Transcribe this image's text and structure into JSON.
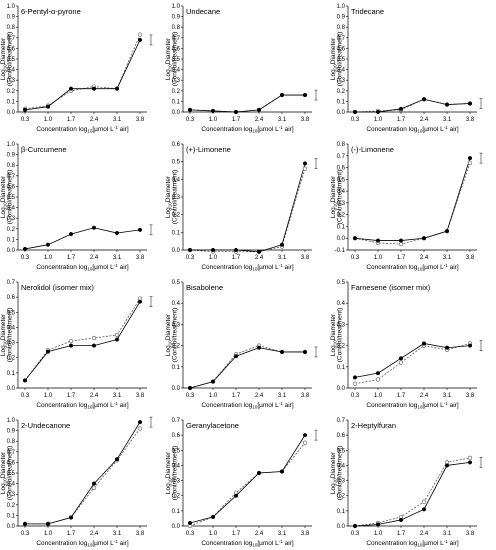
{
  "axes": {
    "ylabel_main": "Log",
    "ylabel_sub": "10",
    "ylabel_rest": "Diameter",
    "ylabel_line2": "(Control/treatment)",
    "xlabel_main": "Concentration log",
    "xlabel_sub": "10",
    "xlabel_rest": "[µmol L",
    "xlabel_sup": "-1",
    "xlabel_end": "air]"
  },
  "chart_data": [
    {
      "type": "line",
      "title": "6-Pentyl-α-pyrone",
      "x": [
        "0.3",
        "1.0",
        "1.7",
        "2.4",
        "3.1",
        "3.8"
      ],
      "xlabel": "Concentration log10[µmol L-1 air]",
      "ylabel": "Log10Diameter (Control/treatment)",
      "ylim": [
        0,
        1
      ],
      "yticks": [
        "0.0",
        "0.1",
        "0.2",
        "0.3",
        "0.4",
        "0.5",
        "0.6",
        "0.7",
        "0.8",
        "0.9",
        "1.0"
      ],
      "series": [
        {
          "marker": "filled",
          "values": [
            0.02,
            0.05,
            0.22,
            0.22,
            0.22,
            0.68
          ]
        },
        {
          "marker": "open",
          "values": [
            0.03,
            0.06,
            0.2,
            0.24,
            0.22,
            0.73
          ]
        }
      ]
    },
    {
      "type": "line",
      "title": "Undecane",
      "x": [
        "0.3",
        "1.0",
        "1.7",
        "2.4",
        "3.1",
        "3.8"
      ],
      "xlabel": "Concentration log10[µmol L-1 air]",
      "ylabel": "Log10Diameter (Control/treatment)",
      "ylim": [
        0,
        1
      ],
      "yticks": [
        "0.0",
        "0.1",
        "0.2",
        "0.3",
        "0.4",
        "0.5",
        "0.6",
        "0.7",
        "0.8",
        "0.9",
        "1.0"
      ],
      "series": [
        {
          "marker": "filled",
          "values": [
            0.02,
            0.01,
            0.0,
            0.02,
            0.16,
            0.16
          ]
        },
        {
          "marker": "open",
          "values": [
            0.02,
            0.01,
            0.0,
            0.02,
            0.16,
            0.16
          ]
        }
      ]
    },
    {
      "type": "line",
      "title": "Tridecane",
      "x": [
        "0.3",
        "1.0",
        "1.7",
        "2.4",
        "3.1",
        "3.8"
      ],
      "xlabel": "Concentration log10[µmol L-1 air]",
      "ylabel": "Log10Diameter (Control/treatment)",
      "ylim": [
        0,
        1
      ],
      "yticks": [
        "0.0",
        "0.1",
        "0.2",
        "0.3",
        "0.4",
        "0.5",
        "0.6",
        "0.7",
        "0.8",
        "0.9",
        "1.0"
      ],
      "series": [
        {
          "marker": "filled",
          "values": [
            0.0,
            0.0,
            0.03,
            0.12,
            0.07,
            0.08
          ]
        },
        {
          "marker": "open",
          "values": [
            0.0,
            0.01,
            0.02,
            0.12,
            0.07,
            0.08
          ]
        }
      ]
    },
    {
      "type": "line",
      "title": "β-Curcumene",
      "x": [
        "0.3",
        "1.0",
        "1.7",
        "2.4",
        "3.1",
        "3.8"
      ],
      "xlabel": "Concentration log10[µmol L-1 air]",
      "ylabel": "Log10Diameter (Control/treatment)",
      "ylim": [
        0,
        1
      ],
      "yticks": [
        "0.0",
        "0.1",
        "0.2",
        "0.3",
        "0.4",
        "0.5",
        "0.6",
        "0.7",
        "0.8",
        "0.9",
        "1.0"
      ],
      "series": [
        {
          "marker": "filled",
          "values": [
            0.01,
            0.05,
            0.15,
            0.21,
            0.16,
            0.19
          ]
        }
      ]
    },
    {
      "type": "line",
      "title": "(+)-Limonene",
      "x": [
        "0.3",
        "1.0",
        "1.7",
        "2.4",
        "3.1",
        "3.8"
      ],
      "xlabel": "Concentration log10[µmol L-1 air]",
      "ylabel": "Log10Diameter (Control/treatment)",
      "ylim": [
        0,
        0.6
      ],
      "yticks": [
        "0.0",
        "0.1",
        "0.2",
        "0.3",
        "0.4",
        "0.5",
        "0.6"
      ],
      "series": [
        {
          "marker": "filled",
          "values": [
            0.0,
            0.0,
            0.0,
            -0.01,
            0.03,
            0.49
          ]
        },
        {
          "marker": "open",
          "values": [
            0.0,
            -0.01,
            -0.01,
            -0.01,
            0.02,
            0.46
          ]
        }
      ]
    },
    {
      "type": "line",
      "title": "(-)-Limonene",
      "x": [
        "0.3",
        "1.0",
        "1.7",
        "2.4",
        "3.1",
        "3.8"
      ],
      "xlabel": "Concentration log10[µmol L-1 air]",
      "ylabel": "Log10Diameter (Control/treatment)",
      "ylim": [
        -0.1,
        0.8
      ],
      "yticks": [
        "-0.1",
        "0.0",
        "0.1",
        "0.2",
        "0.3",
        "0.4",
        "0.5",
        "0.6",
        "0.7",
        "0.8"
      ],
      "series": [
        {
          "marker": "filled",
          "values": [
            0.0,
            -0.02,
            -0.02,
            0.0,
            0.06,
            0.68
          ]
        },
        {
          "marker": "open",
          "values": [
            0.0,
            -0.04,
            -0.05,
            0.0,
            0.06,
            0.64
          ]
        }
      ]
    },
    {
      "type": "line",
      "title": "Nerolidol (isomer mix)",
      "x": [
        "0.3",
        "1.0",
        "1.7",
        "2.4",
        "3.1",
        "3.8"
      ],
      "xlabel": "Concentration log10[µmol L-1 air]",
      "ylabel": "Log10Diameter (Control/treatment)",
      "ylim": [
        0,
        0.7
      ],
      "yticks": [
        "0.0",
        "0.1",
        "0.2",
        "0.3",
        "0.4",
        "0.5",
        "0.6",
        "0.7"
      ],
      "series": [
        {
          "marker": "filled",
          "values": [
            0.05,
            0.24,
            0.28,
            0.28,
            0.32,
            0.57
          ]
        },
        {
          "marker": "open",
          "values": [
            0.05,
            0.25,
            0.31,
            0.33,
            0.35,
            0.59
          ]
        }
      ]
    },
    {
      "type": "line",
      "title": "Bisabolene",
      "x": [
        "0.3",
        "1.0",
        "1.7",
        "2.4",
        "3.1",
        "3.8"
      ],
      "xlabel": "Concentration log10[µmol L-1 air]",
      "ylabel": "Log10Diameter (Control/treatment)",
      "ylim": [
        0,
        0.5
      ],
      "yticks": [
        "0.0",
        "0.1",
        "0.2",
        "0.3",
        "0.4",
        "0.5"
      ],
      "series": [
        {
          "marker": "filled",
          "values": [
            0.0,
            0.03,
            0.15,
            0.19,
            0.17,
            0.17
          ]
        },
        {
          "marker": "open",
          "values": [
            0.0,
            0.03,
            0.16,
            0.2,
            0.17,
            0.17
          ]
        }
      ]
    },
    {
      "type": "line",
      "title": "Farnesene (isomer mix)",
      "x": [
        "0.3",
        "1.0",
        "1.7",
        "2.4",
        "3.1",
        "3.8"
      ],
      "xlabel": "Concentration log10[µmol L-1 air]",
      "ylabel": "Log10Diameter (Control/treatment)",
      "ylim": [
        0,
        0.5
      ],
      "yticks": [
        "0.0",
        "0.1",
        "0.2",
        "0.3",
        "0.4",
        "0.5"
      ],
      "series": [
        {
          "marker": "filled",
          "values": [
            0.05,
            0.07,
            0.14,
            0.21,
            0.19,
            0.2
          ]
        },
        {
          "marker": "open",
          "values": [
            0.02,
            0.04,
            0.12,
            0.2,
            0.18,
            0.21
          ]
        }
      ]
    },
    {
      "type": "line",
      "title": "2-Undecanone",
      "x": [
        "0.3",
        "1.0",
        "1.7",
        "2.4",
        "3.1",
        "3.8"
      ],
      "xlabel": "Concentration log10[µmol L-1 air]",
      "ylabel": "Log10Diameter (Control/treatment)",
      "ylim": [
        0,
        1
      ],
      "yticks": [
        "0.0",
        "0.1",
        "0.2",
        "0.3",
        "0.4",
        "0.5",
        "0.6",
        "0.7",
        "0.8",
        "0.9",
        "1.0"
      ],
      "series": [
        {
          "marker": "filled",
          "values": [
            0.02,
            0.02,
            0.08,
            0.4,
            0.63,
            0.98
          ]
        },
        {
          "marker": "open",
          "values": [
            0.02,
            0.02,
            0.08,
            0.36,
            0.62,
            0.92
          ]
        }
      ]
    },
    {
      "type": "line",
      "title": "Geranylacetone",
      "x": [
        "0.3",
        "1.0",
        "1.7",
        "2.4",
        "3.1",
        "3.8"
      ],
      "xlabel": "Concentration log10[µmol L-1 air]",
      "ylabel": "Log10Diameter (Control/treatment)",
      "ylim": [
        0,
        0.7
      ],
      "yticks": [
        "0.0",
        "0.1",
        "0.2",
        "0.3",
        "0.4",
        "0.5",
        "0.6",
        "0.7"
      ],
      "series": [
        {
          "marker": "filled",
          "values": [
            0.02,
            0.06,
            0.2,
            0.35,
            0.36,
            0.6
          ]
        },
        {
          "marker": "open",
          "values": [
            0.0,
            0.06,
            0.22,
            0.35,
            0.36,
            0.55
          ]
        }
      ]
    },
    {
      "type": "line",
      "title": "2-Heptylfuran",
      "x": [
        "0.3",
        "1.0",
        "1.7",
        "2.4",
        "3.1",
        "3.8"
      ],
      "xlabel": "Concentration log10[µmol L-1 air]",
      "ylabel": "Log10Diameter (Control/treatment)",
      "ylim": [
        0,
        0.7
      ],
      "yticks": [
        "0.0",
        "0.1",
        "0.2",
        "0.3",
        "0.4",
        "0.5",
        "0.6",
        "0.7"
      ],
      "series": [
        {
          "marker": "filled",
          "values": [
            0.0,
            0.01,
            0.04,
            0.11,
            0.4,
            0.42
          ]
        },
        {
          "marker": "open",
          "values": [
            0.0,
            0.02,
            0.06,
            0.16,
            0.42,
            0.45
          ]
        }
      ]
    }
  ]
}
